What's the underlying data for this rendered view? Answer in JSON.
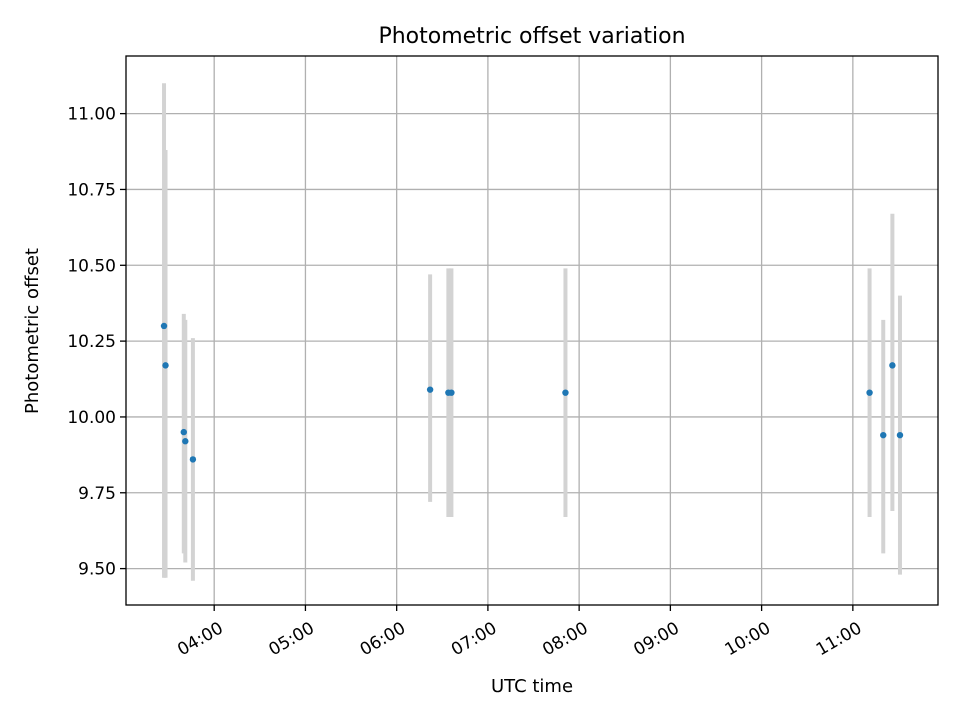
{
  "chart_data": {
    "type": "scatter",
    "title": "Photometric offset variation",
    "xlabel": "UTC time",
    "ylabel": "Photometric offset",
    "x_is_time": true,
    "xlim": [
      "03:02",
      "11:56"
    ],
    "ylim": [
      9.38,
      11.19
    ],
    "xticks": [
      "04:00",
      "05:00",
      "06:00",
      "07:00",
      "08:00",
      "09:00",
      "10:00",
      "11:00"
    ],
    "yticks": [
      9.5,
      9.75,
      10.0,
      10.25,
      10.5,
      10.75,
      11.0
    ],
    "ytick_labels": [
      "9.50",
      "9.75",
      "10.00",
      "10.25",
      "10.50",
      "10.75",
      "11.00"
    ],
    "grid": true,
    "point_color": "#1f77b4",
    "errorbar_color": "#d3d3d3",
    "points": [
      {
        "x": "03:27",
        "y": 10.3,
        "ylow": 9.47,
        "yhigh": 11.1
      },
      {
        "x": "03:28",
        "y": 10.17,
        "ylow": 9.47,
        "yhigh": 10.88
      },
      {
        "x": "03:40",
        "y": 9.95,
        "ylow": 9.55,
        "yhigh": 10.34
      },
      {
        "x": "03:41",
        "y": 9.92,
        "ylow": 9.52,
        "yhigh": 10.32
      },
      {
        "x": "03:46",
        "y": 9.86,
        "ylow": 9.46,
        "yhigh": 10.26
      },
      {
        "x": "06:22",
        "y": 10.09,
        "ylow": 9.72,
        "yhigh": 10.47
      },
      {
        "x": "06:34",
        "y": 10.08,
        "ylow": 9.67,
        "yhigh": 10.49
      },
      {
        "x": "06:36",
        "y": 10.08,
        "ylow": 9.67,
        "yhigh": 10.49
      },
      {
        "x": "07:51",
        "y": 10.08,
        "ylow": 9.67,
        "yhigh": 10.49
      },
      {
        "x": "11:11",
        "y": 10.08,
        "ylow": 9.67,
        "yhigh": 10.49
      },
      {
        "x": "11:20",
        "y": 9.94,
        "ylow": 9.55,
        "yhigh": 10.32
      },
      {
        "x": "11:26",
        "y": 10.17,
        "ylow": 9.69,
        "yhigh": 10.67
      },
      {
        "x": "11:31",
        "y": 9.94,
        "ylow": 9.48,
        "yhigh": 10.4
      }
    ]
  }
}
